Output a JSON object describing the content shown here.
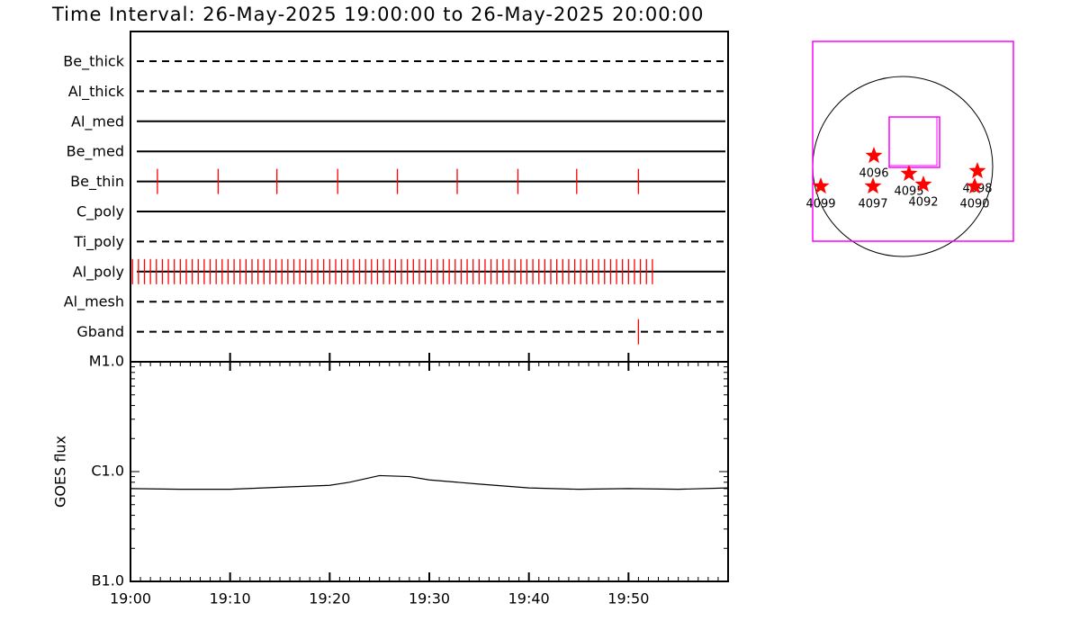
{
  "title": "Time Interval: 26-May-2025 19:00:00 to 26-May-2025 20:00:00",
  "chart_data": [
    {
      "type": "timeline",
      "categories": [
        "Be_thick",
        "Al_thick",
        "Al_med",
        "Be_med",
        "Be_thin",
        "C_poly",
        "Ti_poly",
        "Al_poly",
        "Al_mesh",
        "Gband"
      ],
      "line_styles": [
        "dashed",
        "dashed",
        "solid",
        "solid",
        "solid",
        "solid",
        "dashed",
        "solid",
        "dashed",
        "dashed"
      ],
      "events": [
        [],
        [],
        [],
        [],
        [
          2.7,
          8.8,
          14.7,
          20.8,
          26.8,
          32.8,
          38.9,
          44.8,
          51.0
        ],
        [],
        [],
        [
          0.2,
          0.8,
          1.4,
          2.0,
          2.6,
          3.2,
          3.8,
          4.4,
          5.0,
          5.6,
          6.2,
          6.8,
          7.4,
          8.0,
          8.6,
          9.2,
          9.8,
          10.4,
          11.0,
          11.6,
          12.2,
          12.8,
          13.4,
          14.0,
          14.6,
          15.2,
          15.8,
          16.4,
          17.0,
          17.6,
          18.2,
          18.8,
          19.4,
          20.0,
          20.6,
          21.2,
          21.8,
          22.4,
          23.0,
          23.6,
          24.2,
          24.8,
          25.4,
          26.0,
          26.6,
          27.2,
          27.8,
          28.4,
          29.0,
          29.6,
          30.2,
          30.8,
          31.4,
          32.0,
          32.6,
          33.2,
          33.8,
          34.4,
          35.0,
          35.6,
          36.2,
          36.8,
          37.4,
          38.0,
          38.6,
          39.2,
          39.8,
          40.4,
          41.0,
          41.6,
          42.2,
          42.8,
          43.4,
          44.0,
          44.6,
          45.2,
          45.8,
          46.4,
          47.0,
          47.6,
          48.2,
          48.8,
          49.4,
          50.0,
          50.6,
          51.2,
          51.8,
          52.4
        ],
        [],
        [
          51.0
        ]
      ],
      "color": "#ff0000",
      "xlim": [
        0,
        60
      ]
    },
    {
      "type": "line",
      "ylabel": "GOES flux",
      "x": [
        0,
        5,
        10,
        15,
        20,
        22,
        25,
        28,
        30,
        35,
        40,
        45,
        50,
        55,
        60
      ],
      "values": [
        7e-07,
        6.9e-07,
        6.9e-07,
        7.2e-07,
        7.5e-07,
        8e-07,
        9.2e-07,
        9e-07,
        8.4e-07,
        7.7e-07,
        7.1e-07,
        6.9e-07,
        7e-07,
        6.9e-07,
        7.1e-07
      ],
      "color": "#000000",
      "log_scale": true,
      "ylim": [
        1e-07,
        1e-05
      ],
      "yticks": [
        {
          "value": 1e-07,
          "label": "B1.0"
        },
        {
          "value": 1e-06,
          "label": "C1.0"
        },
        {
          "value": 1e-05,
          "label": "M1.0"
        }
      ],
      "xlim": [
        0,
        60
      ],
      "xticks": [
        {
          "value": 0,
          "label": "19:00"
        },
        {
          "value": 10,
          "label": "19:10"
        },
        {
          "value": 20,
          "label": "19:20"
        },
        {
          "value": 30,
          "label": "19:30"
        },
        {
          "value": 40,
          "label": "19:40"
        },
        {
          "value": 50,
          "label": "19:50"
        }
      ]
    },
    {
      "type": "map",
      "regions": [
        "4096",
        "4099",
        "4097",
        "4095",
        "4092",
        "4098",
        "4090"
      ],
      "marker_color": "#ff0000",
      "box_color": "#ff00ff"
    }
  ]
}
